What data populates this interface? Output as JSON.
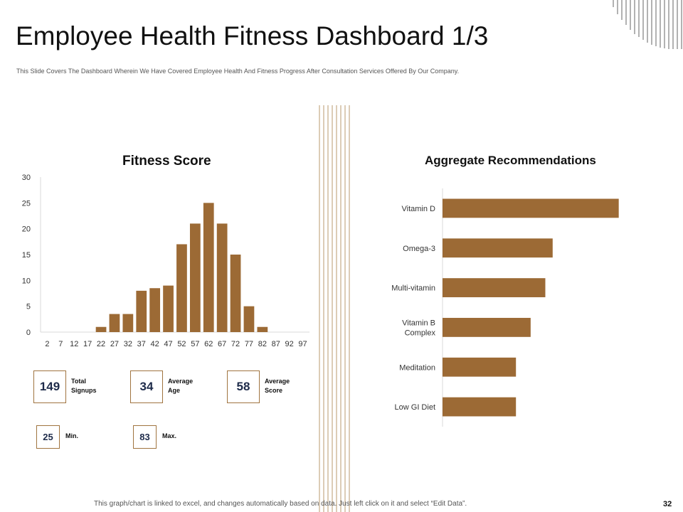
{
  "header": {
    "title": "Employee Health Fitness Dashboard 1/3",
    "subtitle": "This Slide Covers The Dashboard Wherein We Have Covered Employee Health And Fitness Progress After Consultation Services Offered By Our Company."
  },
  "colors": {
    "bar": "#9c6a35",
    "box_border": "#a0743f",
    "value_text": "#1e2b4a"
  },
  "chart_data": [
    {
      "type": "bar",
      "title": "Fitness Score",
      "categories": [
        "2",
        "7",
        "12",
        "17",
        "22",
        "27",
        "32",
        "37",
        "42",
        "47",
        "52",
        "57",
        "62",
        "67",
        "72",
        "77",
        "82",
        "87",
        "92",
        "97"
      ],
      "values": [
        0,
        0,
        0,
        0,
        1,
        3.5,
        3.5,
        8,
        8.5,
        9,
        17,
        21,
        25,
        21,
        15,
        5,
        1,
        0,
        0,
        0
      ],
      "ylim": [
        0,
        30
      ],
      "yticks": [
        0,
        5,
        10,
        15,
        20,
        25,
        30
      ],
      "xlabel": "",
      "ylabel": ""
    },
    {
      "type": "bar",
      "orientation": "horizontal",
      "title": "Aggregate Recommendations",
      "categories": [
        "Vitamin D",
        "Omega-3",
        "Multi-vitamin",
        "Vitamin B Complex",
        "Meditation",
        "Low GI Diet"
      ],
      "values": [
        48,
        30,
        28,
        24,
        20,
        20
      ],
      "xlim": [
        0,
        50
      ]
    }
  ],
  "stats": {
    "total_signups": {
      "value": "149",
      "label": "Total\nSignups"
    },
    "average_age": {
      "value": "34",
      "label": "Average\nAge"
    },
    "average_score": {
      "value": "58",
      "label": "Average\nScore"
    },
    "min": {
      "value": "25",
      "label": "Min."
    },
    "max": {
      "value": "83",
      "label": "Max."
    }
  },
  "footer": {
    "note": "This graph/chart is linked to excel, and changes automatically based on data. Just left click on it and select “Edit Data”.",
    "page_number": "32"
  }
}
